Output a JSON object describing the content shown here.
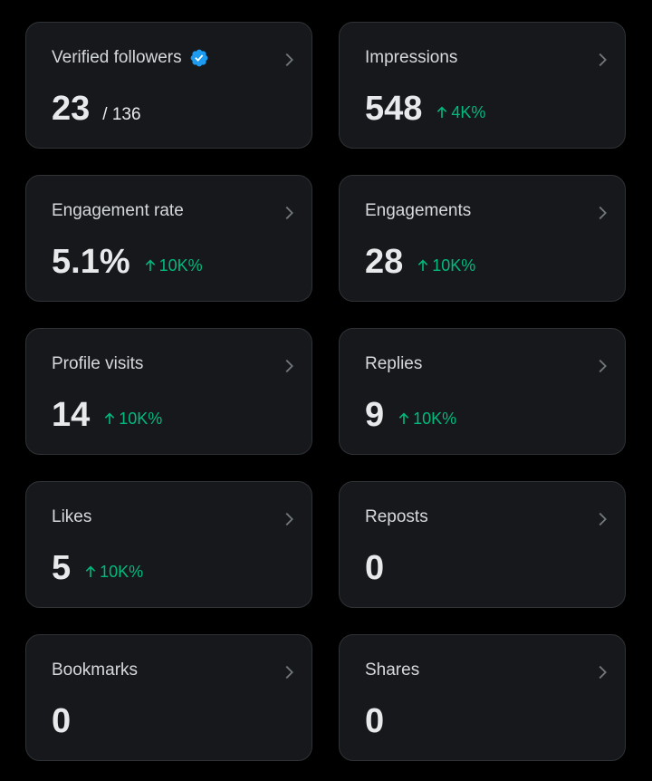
{
  "cards": [
    {
      "label": "Verified followers",
      "value": "23",
      "total": "/ 136"
    },
    {
      "label": "Impressions",
      "value": "548",
      "change": "4K%"
    },
    {
      "label": "Engagement rate",
      "value": "5.1%",
      "change": "10K%"
    },
    {
      "label": "Engagements",
      "value": "28",
      "change": "10K%"
    },
    {
      "label": "Profile visits",
      "value": "14",
      "change": "10K%"
    },
    {
      "label": "Replies",
      "value": "9",
      "change": "10K%"
    },
    {
      "label": "Likes",
      "value": "5",
      "change": "10K%"
    },
    {
      "label": "Reposts",
      "value": "0"
    },
    {
      "label": "Bookmarks",
      "value": "0"
    },
    {
      "label": "Shares",
      "value": "0"
    }
  ]
}
